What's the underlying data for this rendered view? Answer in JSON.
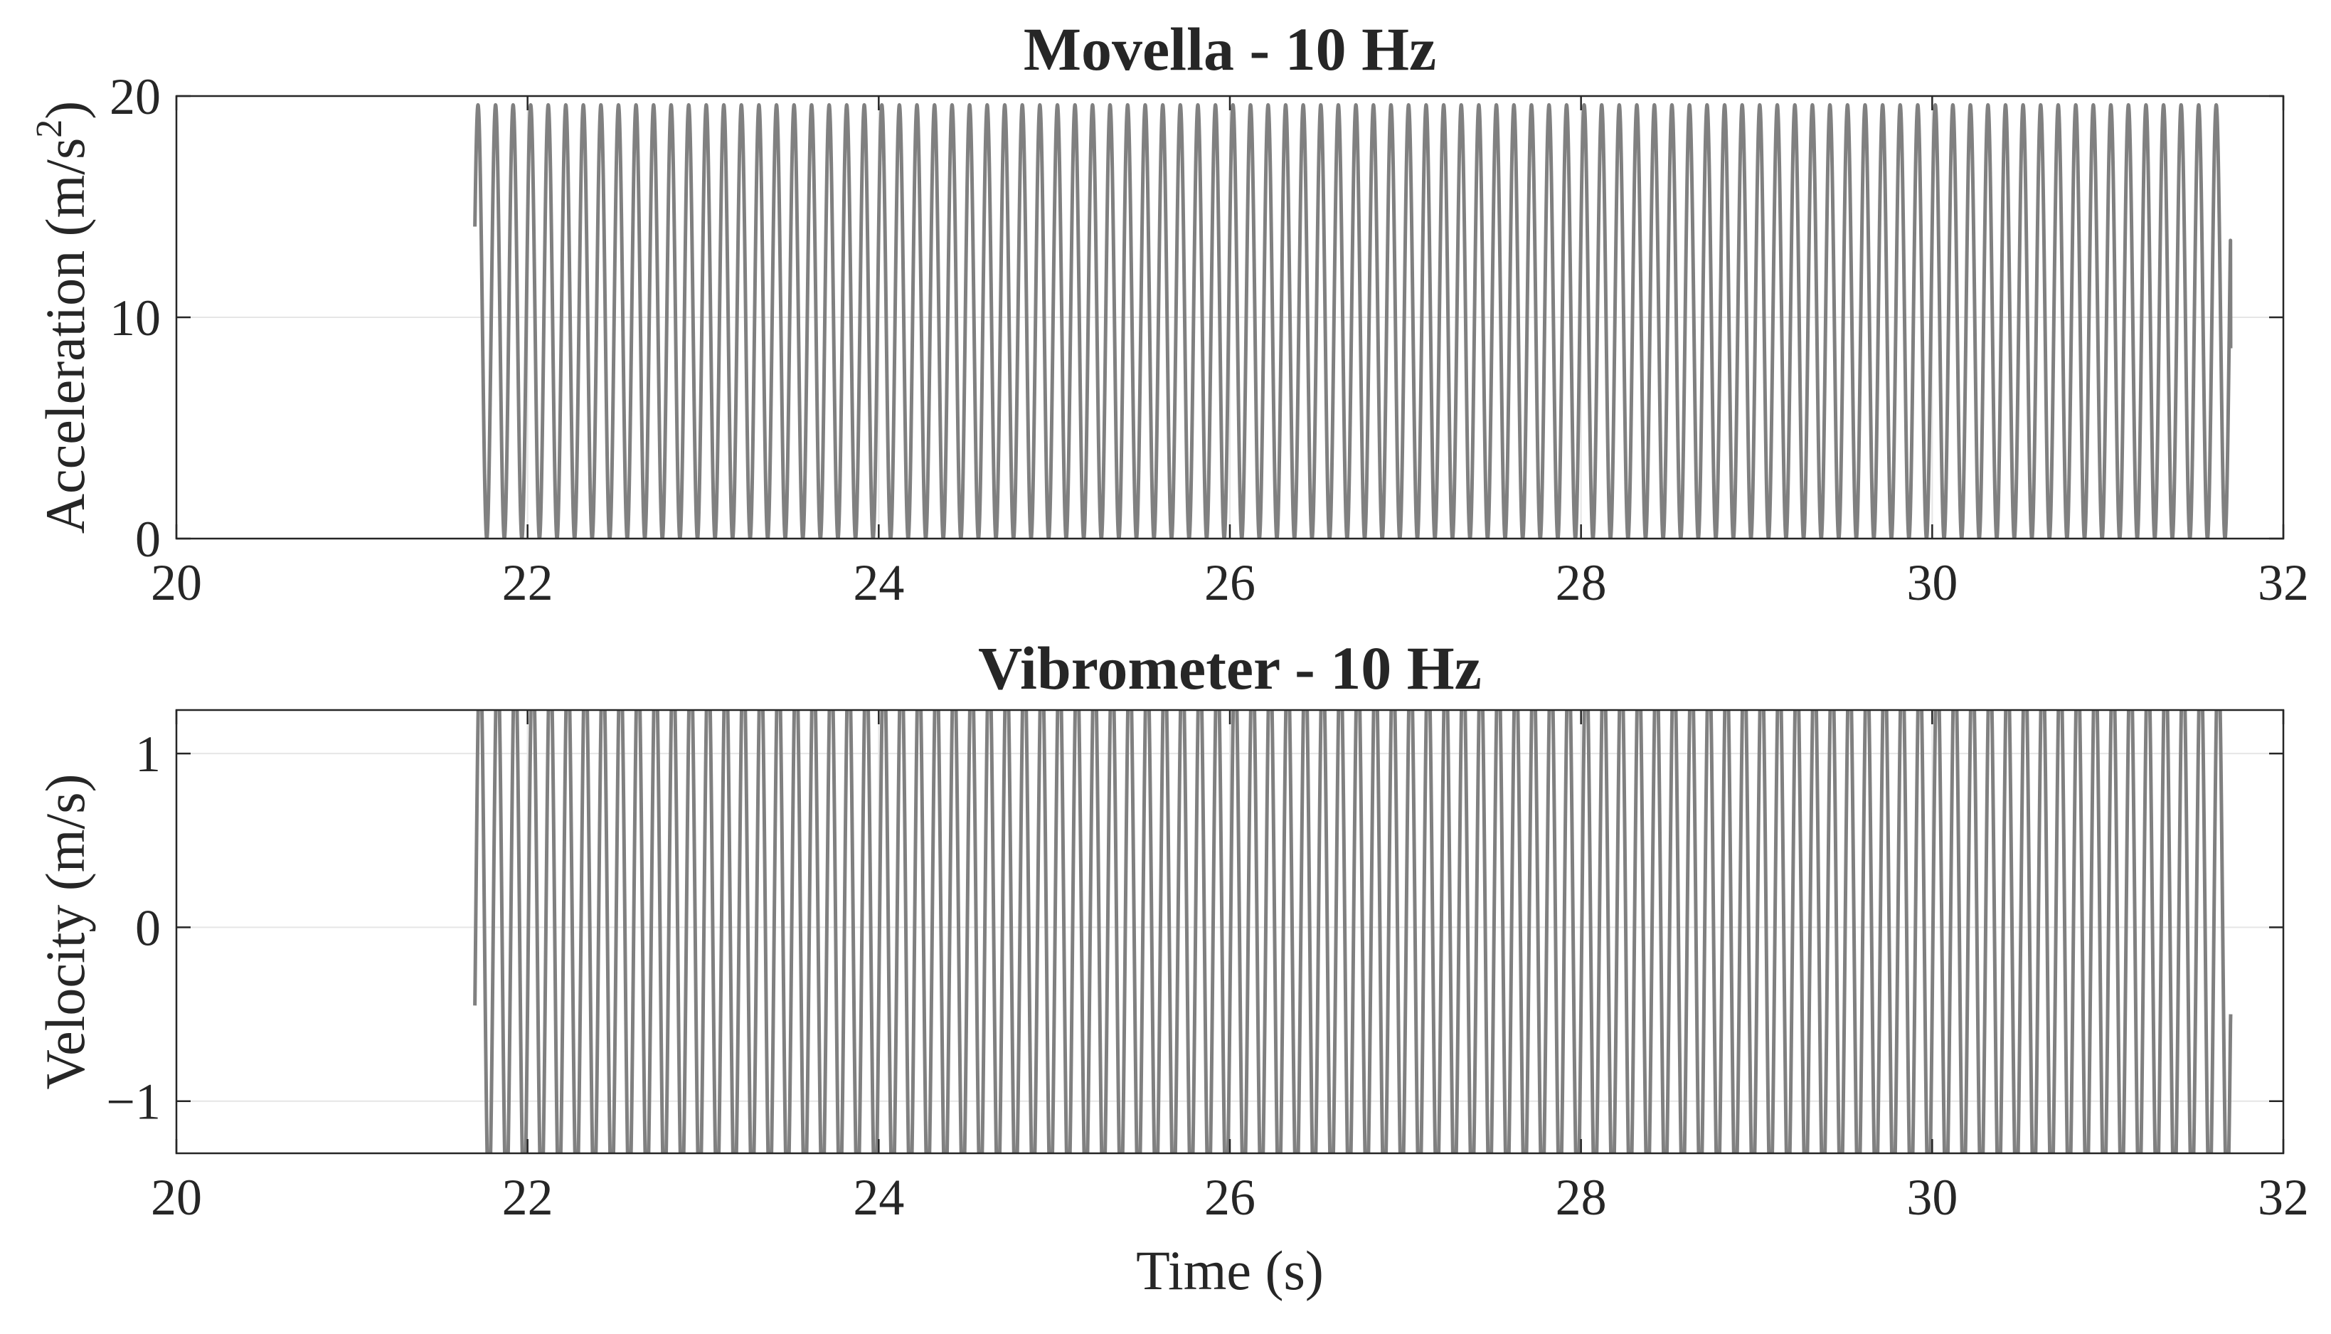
{
  "chart_data": [
    {
      "type": "line",
      "title": "Movella - 10 Hz",
      "xlabel": "",
      "ylabel": "Acceleration (m/s²)",
      "ylabel_parts": {
        "main": "Acceleration (m/s",
        "sup": "2",
        "close": ")"
      },
      "xlim": [
        20,
        32
      ],
      "ylim": [
        0,
        20
      ],
      "xticks": [
        20,
        22,
        24,
        26,
        28,
        30,
        32
      ],
      "yticks": [
        0,
        10,
        20
      ],
      "xticklabels": [
        "20",
        "22",
        "24",
        "26",
        "28",
        "30",
        "32"
      ],
      "yticklabels": [
        "0",
        "10",
        "20"
      ],
      "grid": true,
      "legend": "none",
      "line_color": "#808080",
      "signal": {
        "shape": "sinusoid",
        "frequency_hz": 10,
        "offset": 9.8,
        "amplitude": 9.8,
        "start_time": 21.7,
        "end_time": 31.7,
        "start_value": 14.1,
        "end_value": 8.6,
        "baseline_before_start": "none"
      }
    },
    {
      "type": "line",
      "title": "Vibrometer - 10 Hz",
      "xlabel": "Time (s)",
      "ylabel": "Velocity (m/s)",
      "xlim": [
        20,
        32
      ],
      "ylim": [
        -1.3,
        1.25
      ],
      "xticks": [
        20,
        22,
        24,
        26,
        28,
        30,
        32
      ],
      "yticks": [
        -1,
        0,
        1
      ],
      "xticklabels": [
        "20",
        "22",
        "24",
        "26",
        "28",
        "30",
        "32"
      ],
      "yticklabels": [
        "−1",
        "0",
        "1"
      ],
      "grid": true,
      "legend": "none",
      "line_color": "#808080",
      "signal": {
        "shape": "sinusoid",
        "frequency_hz": 10,
        "offset": 0,
        "amplitude": 1.6,
        "clipped_to_ylim": true,
        "start_time": 21.7,
        "end_time": 31.7,
        "start_value": -0.45,
        "end_value": -0.5,
        "baseline_before_start": "none"
      }
    }
  ]
}
